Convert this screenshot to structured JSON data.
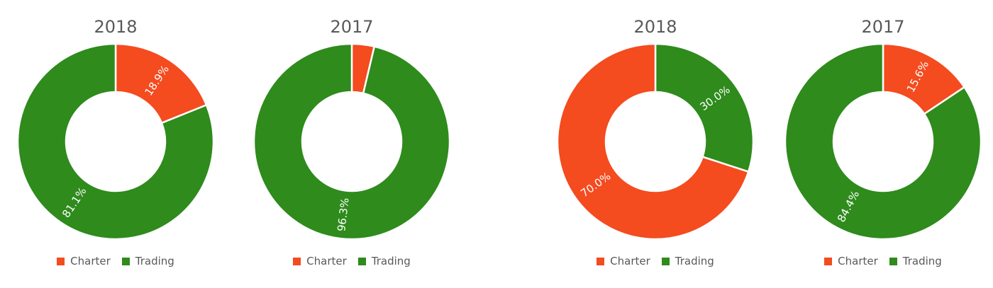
{
  "colors": {
    "Charter": "#F44B1F",
    "Trading": "#2E8B1C"
  },
  "chart_data": [
    {
      "type": "pie",
      "title": "2018",
      "categories": [
        "Charter",
        "Trading"
      ],
      "values": [
        18.9,
        81.1
      ],
      "labels": [
        "18.9%",
        "81.1%"
      ],
      "legend": "bottom"
    },
    {
      "type": "pie",
      "title": "2017",
      "categories": [
        "Charter",
        "Trading"
      ],
      "values": [
        3.7,
        96.3
      ],
      "labels": [
        "",
        "96.3%"
      ],
      "legend": "bottom"
    },
    {
      "type": "pie",
      "title": "2018",
      "categories": [
        "Trading",
        "Charter"
      ],
      "values": [
        30.0,
        70.0
      ],
      "labels": [
        "30.0%",
        "70.0%"
      ],
      "legend_categories": [
        "Charter",
        "Trading"
      ],
      "legend": "bottom"
    },
    {
      "type": "pie",
      "title": "2017",
      "categories": [
        "Charter",
        "Trading"
      ],
      "values": [
        15.6,
        84.4
      ],
      "labels": [
        "15.6%",
        "84.4%"
      ],
      "legend": "bottom"
    }
  ]
}
